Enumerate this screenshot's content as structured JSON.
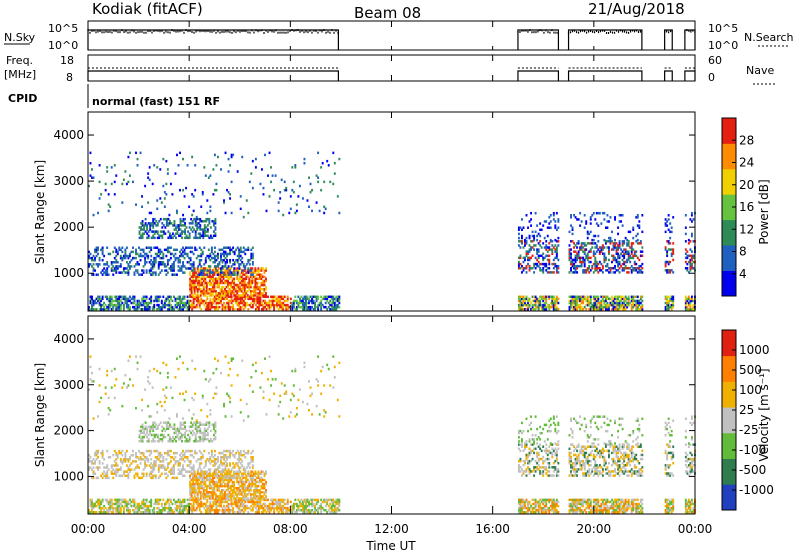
{
  "header": {
    "station": "Kodiak (fitACF)",
    "beam": "Beam 08",
    "date": "21/Aug/2018"
  },
  "status_panels": {
    "nsky_label": "N.Sky",
    "nsky_ticks": [
      "10^5",
      "10^0"
    ],
    "nsearch_label": "N.Search",
    "nsearch_ticks": [
      "10^5",
      "10^0"
    ],
    "freq_label_top": "Freq.",
    "freq_label_bottom": "[MHz]",
    "freq_ticks": [
      "18",
      "8"
    ],
    "nave_label": "Nave",
    "nave_ticks": [
      "60",
      "0"
    ],
    "cpid_label": "CPID",
    "cpid_text": "normal (fast) 151 RF"
  },
  "chart_data": [
    {
      "type": "heatmap",
      "name": "power",
      "ylabel": "Slant Range [km]",
      "yticks": [
        "4000",
        "3000",
        "2000",
        "1000"
      ],
      "ylim": [
        180,
        4500
      ],
      "colorbar_label": "Power [dB]",
      "colorbar_ticks": [
        "28",
        "24",
        "20",
        "16",
        "12",
        "8",
        "4"
      ],
      "colors": [
        "#0000ee",
        "#1f5fbf",
        "#2e8b57",
        "#66c33f",
        "#f0d000",
        "#ff8c00",
        "#e62010"
      ],
      "x_range_hours": [
        0,
        24
      ],
      "data_intervals_hours": [
        [
          0.0,
          9.9
        ],
        [
          17.0,
          18.6
        ],
        [
          19.0,
          21.9
        ],
        [
          22.8,
          23.1
        ],
        [
          23.6,
          24.0
        ]
      ]
    },
    {
      "type": "heatmap",
      "name": "velocity",
      "ylabel": "Slant Range [km]",
      "yticks": [
        "4000",
        "3000",
        "2000",
        "1000"
      ],
      "ylim": [
        180,
        4500
      ],
      "colorbar_label": "Velocity [m s⁻¹]",
      "colorbar_ticks": [
        "1000",
        "500",
        "100",
        "25",
        "-25",
        "-100",
        "-500",
        "-1000"
      ],
      "colors": [
        "#2040c0",
        "#2f7d4f",
        "#62bb3a",
        "#c0c0c0",
        "#f0b000",
        "#ff8000",
        "#e02010"
      ],
      "x_range_hours": [
        0,
        24
      ],
      "data_intervals_hours": [
        [
          0.0,
          9.9
        ],
        [
          17.0,
          18.6
        ],
        [
          19.0,
          21.9
        ],
        [
          22.8,
          23.1
        ],
        [
          23.6,
          24.0
        ]
      ]
    }
  ],
  "xaxis": {
    "ticks": [
      "00:00",
      "04:00",
      "08:00",
      "12:00",
      "16:00",
      "20:00",
      "00:00"
    ],
    "label": "Time UT"
  }
}
